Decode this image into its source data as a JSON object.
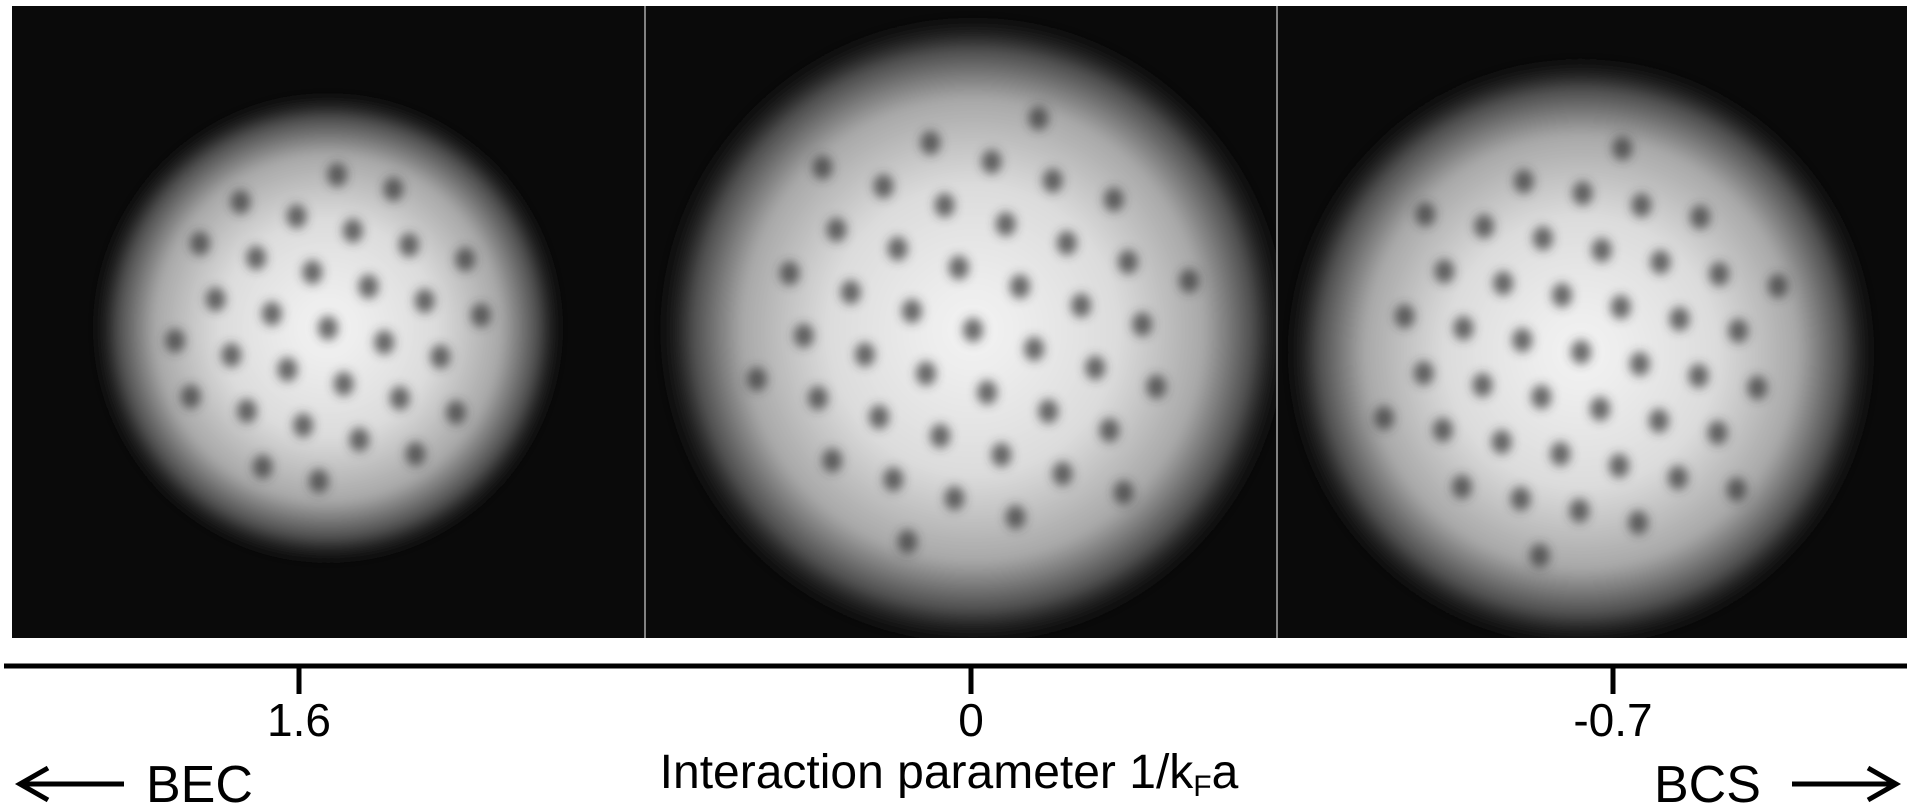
{
  "ticks": [
    "1.6",
    "0",
    "-0.7"
  ],
  "axis_label": {
    "text": "Interaction parameter 1/k",
    "subscript": "F",
    "suffix": "a"
  },
  "left_label": "BEC",
  "right_label": "BCS"
}
